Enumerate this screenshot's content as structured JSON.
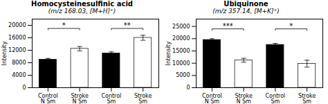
{
  "chart_data": [
    {
      "type": "bar",
      "title": "Homocysteinesulfinic acid",
      "subtitle": "(m/z 168.03, [M+H]⁺)",
      "categories": [
        "Control\nN Sm",
        "Stroke\nN Sm",
        "Control\nSm",
        "Stroke\nSm"
      ],
      "values": [
        9000,
        12500,
        11000,
        16000
      ],
      "errors": [
        400,
        700,
        500,
        800
      ],
      "colors": [
        "black",
        "white",
        "black",
        "white"
      ],
      "ylabel": "Intensity",
      "ylim": [
        0,
        22000
      ],
      "yticks": [
        0,
        4000,
        8000,
        12000,
        16000,
        20000
      ],
      "significance": [
        {
          "from": "Control\nN Sm",
          "to": "Stroke\nN Sm",
          "y": 19000,
          "label": "*"
        },
        {
          "from": "Control\nSm",
          "to": "Stroke\nSm",
          "y": 19000,
          "label": "**"
        }
      ]
    },
    {
      "type": "bar",
      "title": "Ubiquinone",
      "subtitle": "(m/z 357.14, [M+K]⁺)",
      "categories": [
        "Control\nN Sm",
        "Stroke\nN Sm",
        "Control\nSm",
        "Stroke\nSm"
      ],
      "values": [
        19500,
        11200,
        17500,
        9800
      ],
      "errors": [
        500,
        800,
        600,
        1400
      ],
      "colors": [
        "black",
        "white",
        "black",
        "white"
      ],
      "ylabel": "Intensity",
      "ylim": [
        0,
        28000
      ],
      "yticks": [
        0,
        5000,
        10000,
        15000,
        20000,
        25000
      ],
      "significance": [
        {
          "from": "Control\nN Sm",
          "to": "Stroke\nN Sm",
          "y": 24000,
          "label": "***"
        },
        {
          "from": "Control\nSm",
          "to": "Stroke\nSm",
          "y": 24000,
          "label": "*"
        }
      ]
    }
  ]
}
